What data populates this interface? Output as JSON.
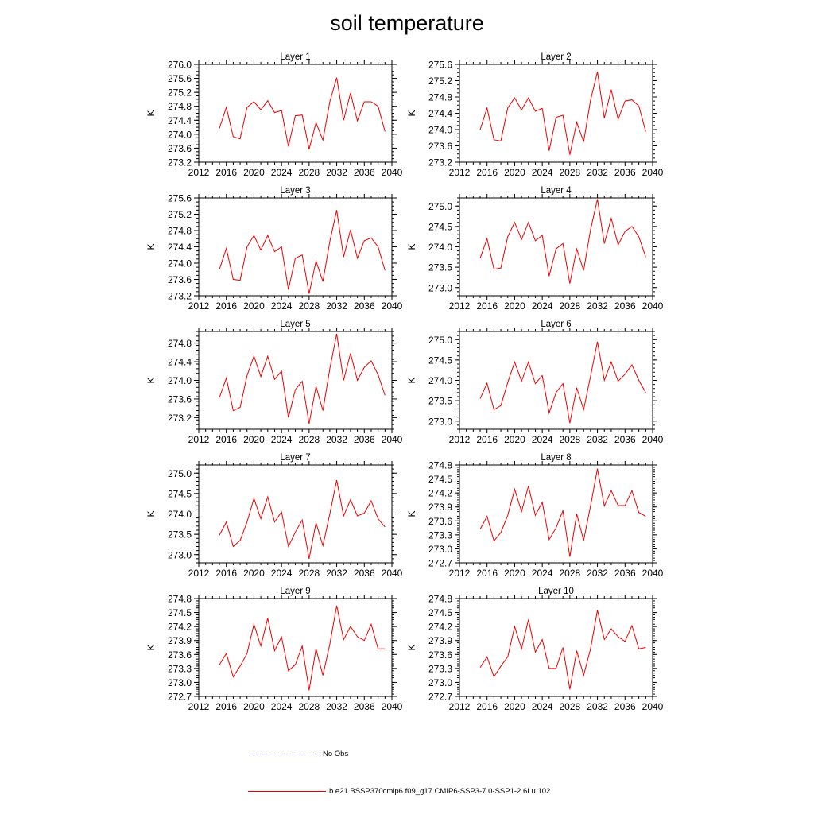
{
  "title": "soil temperature",
  "legend": {
    "obs_label": "No Obs",
    "obs_color": "#6060c8",
    "model_label": "b.e21.BSSP370cmip6.f09_g17.CMIP6-SSP3-7.0-SSP1-2.6Lu.102",
    "model_color": "#ee0000"
  },
  "chart_data": [
    {
      "type": "line",
      "title": "Layer 1",
      "ylabel": "K",
      "xlim": [
        2012,
        2040
      ],
      "xticks": [
        2012,
        2016,
        2020,
        2024,
        2028,
        2032,
        2036,
        2040
      ],
      "ylim": [
        273.2,
        276.0
      ],
      "yticks": [
        273.2,
        273.6,
        274.0,
        274.4,
        274.8,
        275.2,
        275.6,
        276.0
      ],
      "yminor": 0.1,
      "grid": false,
      "series": [
        {
          "color": "#ee0000",
          "x": [
            2015,
            2016,
            2017,
            2018,
            2019,
            2020,
            2021,
            2022,
            2023,
            2024,
            2025,
            2026,
            2027,
            2028,
            2029,
            2030,
            2031,
            2032,
            2033,
            2034,
            2035,
            2036,
            2037,
            2038,
            2039
          ],
          "values": [
            274.17,
            274.77,
            273.93,
            273.87,
            274.77,
            274.93,
            274.7,
            274.96,
            274.62,
            274.68,
            273.65,
            274.53,
            274.55,
            273.57,
            274.33,
            273.83,
            274.93,
            275.62,
            274.4,
            275.18,
            274.38,
            274.93,
            274.93,
            274.8,
            274.08
          ]
        }
      ]
    },
    {
      "type": "line",
      "title": "Layer 2",
      "ylabel": "K",
      "xlim": [
        2012,
        2040
      ],
      "xticks": [
        2012,
        2016,
        2020,
        2024,
        2028,
        2032,
        2036,
        2040
      ],
      "ylim": [
        273.2,
        275.6
      ],
      "yticks": [
        273.2,
        273.6,
        274.0,
        274.4,
        274.8,
        275.2,
        275.6
      ],
      "yminor": 0.1,
      "grid": false,
      "series": [
        {
          "color": "#ee0000",
          "x": [
            2015,
            2016,
            2017,
            2018,
            2019,
            2020,
            2021,
            2022,
            2023,
            2024,
            2025,
            2026,
            2027,
            2028,
            2029,
            2030,
            2031,
            2032,
            2033,
            2034,
            2035,
            2036,
            2037,
            2038,
            2039
          ],
          "values": [
            274.0,
            274.53,
            273.75,
            273.72,
            274.53,
            274.78,
            274.48,
            274.78,
            274.45,
            274.52,
            273.48,
            274.3,
            274.35,
            273.38,
            274.18,
            273.7,
            274.72,
            275.42,
            274.28,
            274.98,
            274.25,
            274.7,
            274.73,
            274.58,
            273.95
          ]
        }
      ]
    },
    {
      "type": "line",
      "title": "Layer 3",
      "ylabel": "K",
      "xlim": [
        2012,
        2040
      ],
      "xticks": [
        2012,
        2016,
        2020,
        2024,
        2028,
        2032,
        2036,
        2040
      ],
      "ylim": [
        273.2,
        275.6
      ],
      "yticks": [
        273.2,
        273.6,
        274.0,
        274.4,
        274.8,
        275.2,
        275.6
      ],
      "yminor": 0.1,
      "grid": false,
      "series": [
        {
          "color": "#ee0000",
          "x": [
            2015,
            2016,
            2017,
            2018,
            2019,
            2020,
            2021,
            2022,
            2023,
            2024,
            2025,
            2026,
            2027,
            2028,
            2029,
            2030,
            2031,
            2032,
            2033,
            2034,
            2035,
            2036,
            2037,
            2038,
            2039
          ],
          "values": [
            273.85,
            274.36,
            273.6,
            273.58,
            274.4,
            274.68,
            274.32,
            274.68,
            274.28,
            274.4,
            273.35,
            274.12,
            274.2,
            273.25,
            274.05,
            273.55,
            274.53,
            275.3,
            274.15,
            274.82,
            274.12,
            274.55,
            274.62,
            274.4,
            273.82
          ]
        }
      ]
    },
    {
      "type": "line",
      "title": "Layer 4",
      "ylabel": "K",
      "xlim": [
        2012,
        2040
      ],
      "xticks": [
        2012,
        2016,
        2020,
        2024,
        2028,
        2032,
        2036,
        2040
      ],
      "ylim": [
        272.8,
        275.2
      ],
      "yticks": [
        273.0,
        273.5,
        274.0,
        274.5,
        275.0
      ],
      "yminor": 0.1,
      "grid": false,
      "series": [
        {
          "color": "#ee0000",
          "x": [
            2015,
            2016,
            2017,
            2018,
            2019,
            2020,
            2021,
            2022,
            2023,
            2024,
            2025,
            2026,
            2027,
            2028,
            2029,
            2030,
            2031,
            2032,
            2033,
            2034,
            2035,
            2036,
            2037,
            2038,
            2039
          ],
          "values": [
            273.72,
            274.2,
            273.45,
            273.48,
            274.25,
            274.6,
            274.18,
            274.6,
            274.15,
            274.28,
            273.28,
            273.95,
            274.08,
            273.1,
            273.95,
            273.42,
            274.42,
            275.17,
            274.08,
            274.7,
            274.05,
            274.38,
            274.5,
            274.25,
            273.75
          ]
        }
      ]
    },
    {
      "type": "line",
      "title": "Layer 5",
      "ylabel": "K",
      "xlim": [
        2012,
        2040
      ],
      "xticks": [
        2012,
        2016,
        2020,
        2024,
        2028,
        2032,
        2036,
        2040
      ],
      "ylim": [
        272.95,
        275.05
      ],
      "yticks": [
        273.2,
        273.6,
        274.0,
        274.4,
        274.8
      ],
      "yminor": 0.1,
      "grid": false,
      "series": [
        {
          "color": "#ee0000",
          "x": [
            2015,
            2016,
            2017,
            2018,
            2019,
            2020,
            2021,
            2022,
            2023,
            2024,
            2025,
            2026,
            2027,
            2028,
            2029,
            2030,
            2031,
            2032,
            2033,
            2034,
            2035,
            2036,
            2037,
            2038,
            2039
          ],
          "values": [
            273.63,
            274.05,
            273.35,
            273.42,
            274.1,
            274.52,
            274.08,
            274.52,
            274.02,
            274.2,
            273.2,
            273.8,
            273.98,
            273.07,
            273.87,
            273.35,
            274.25,
            275.0,
            274.0,
            274.58,
            274.0,
            274.28,
            274.42,
            274.12,
            273.68
          ]
        }
      ]
    },
    {
      "type": "line",
      "title": "Layer 6",
      "ylabel": "K",
      "xlim": [
        2012,
        2040
      ],
      "xticks": [
        2012,
        2016,
        2020,
        2024,
        2028,
        2032,
        2036,
        2040
      ],
      "ylim": [
        272.8,
        275.2
      ],
      "yticks": [
        273.0,
        273.5,
        274.0,
        274.5,
        275.0
      ],
      "yminor": 0.1,
      "grid": false,
      "series": [
        {
          "color": "#ee0000",
          "x": [
            2015,
            2016,
            2017,
            2018,
            2019,
            2020,
            2021,
            2022,
            2023,
            2024,
            2025,
            2026,
            2027,
            2028,
            2029,
            2030,
            2031,
            2032,
            2033,
            2034,
            2035,
            2036,
            2037,
            2038,
            2039
          ],
          "values": [
            273.55,
            273.93,
            273.28,
            273.38,
            273.95,
            274.45,
            273.98,
            274.45,
            273.92,
            274.12,
            273.2,
            273.7,
            273.92,
            272.95,
            273.82,
            273.28,
            274.1,
            274.95,
            274.0,
            274.45,
            273.98,
            274.15,
            274.38,
            274.0,
            273.7
          ]
        }
      ]
    },
    {
      "type": "line",
      "title": "Layer 7",
      "ylabel": "K",
      "xlim": [
        2012,
        2040
      ],
      "xticks": [
        2012,
        2016,
        2020,
        2024,
        2028,
        2032,
        2036,
        2040
      ],
      "ylim": [
        272.8,
        275.2
      ],
      "yticks": [
        273.0,
        273.5,
        274.0,
        274.5,
        275.0
      ],
      "yminor": 0.1,
      "grid": false,
      "series": [
        {
          "color": "#ee0000",
          "x": [
            2015,
            2016,
            2017,
            2018,
            2019,
            2020,
            2021,
            2022,
            2023,
            2024,
            2025,
            2026,
            2027,
            2028,
            2029,
            2030,
            2031,
            2032,
            2033,
            2034,
            2035,
            2036,
            2037,
            2038,
            2039
          ],
          "values": [
            273.48,
            273.8,
            273.2,
            273.35,
            273.8,
            274.38,
            273.88,
            274.42,
            273.8,
            274.05,
            273.2,
            273.55,
            273.85,
            272.9,
            273.78,
            273.22,
            274.0,
            274.83,
            273.95,
            274.35,
            273.95,
            274.02,
            274.32,
            273.88,
            273.68
          ]
        }
      ]
    },
    {
      "type": "line",
      "title": "Layer 8",
      "ylabel": "K",
      "xlim": [
        2012,
        2040
      ],
      "xticks": [
        2012,
        2016,
        2020,
        2024,
        2028,
        2032,
        2036,
        2040
      ],
      "ylim": [
        272.7,
        274.8
      ],
      "yticks": [
        272.7,
        273.0,
        273.3,
        273.6,
        273.9,
        274.2,
        274.5,
        274.8
      ],
      "yminor": 0.05,
      "grid": false,
      "series": [
        {
          "color": "#ee0000",
          "x": [
            2015,
            2016,
            2017,
            2018,
            2019,
            2020,
            2021,
            2022,
            2023,
            2024,
            2025,
            2026,
            2027,
            2028,
            2029,
            2030,
            2031,
            2032,
            2033,
            2034,
            2035,
            2036,
            2037,
            2038,
            2039
          ],
          "values": [
            273.42,
            273.7,
            273.17,
            273.35,
            273.72,
            274.28,
            273.8,
            274.35,
            273.72,
            274.0,
            273.2,
            273.45,
            273.82,
            272.83,
            273.75,
            273.18,
            273.92,
            274.72,
            273.92,
            274.25,
            273.93,
            273.93,
            274.25,
            273.78,
            273.7
          ]
        }
      ]
    },
    {
      "type": "line",
      "title": "Layer 9",
      "ylabel": "K",
      "xlim": [
        2012,
        2040
      ],
      "xticks": [
        2012,
        2016,
        2020,
        2024,
        2028,
        2032,
        2036,
        2040
      ],
      "ylim": [
        272.7,
        274.8
      ],
      "yticks": [
        272.7,
        273.0,
        273.3,
        273.6,
        273.9,
        274.2,
        274.5,
        274.8
      ],
      "yminor": 0.05,
      "grid": false,
      "series": [
        {
          "color": "#ee0000",
          "x": [
            2015,
            2016,
            2017,
            2018,
            2019,
            2020,
            2021,
            2022,
            2023,
            2024,
            2025,
            2026,
            2027,
            2028,
            2029,
            2030,
            2031,
            2032,
            2033,
            2034,
            2035,
            2036,
            2037,
            2038,
            2039
          ],
          "values": [
            273.38,
            273.62,
            273.12,
            273.35,
            273.62,
            274.25,
            273.78,
            274.38,
            273.68,
            273.98,
            273.25,
            273.38,
            273.78,
            272.83,
            273.72,
            273.15,
            273.82,
            274.65,
            273.92,
            274.2,
            273.98,
            273.9,
            274.25,
            273.72,
            273.72
          ]
        }
      ]
    },
    {
      "type": "line",
      "title": "Layer 10",
      "ylabel": "K",
      "xlim": [
        2012,
        2040
      ],
      "xticks": [
        2012,
        2016,
        2020,
        2024,
        2028,
        2032,
        2036,
        2040
      ],
      "ylim": [
        272.7,
        274.8
      ],
      "yticks": [
        272.7,
        273.0,
        273.3,
        273.6,
        273.9,
        274.2,
        274.5,
        274.8
      ],
      "yminor": 0.05,
      "grid": false,
      "series": [
        {
          "color": "#ee0000",
          "x": [
            2015,
            2016,
            2017,
            2018,
            2019,
            2020,
            2021,
            2022,
            2023,
            2024,
            2025,
            2026,
            2027,
            2028,
            2029,
            2030,
            2031,
            2032,
            2033,
            2034,
            2035,
            2036,
            2037,
            2038,
            2039
          ],
          "values": [
            273.32,
            273.55,
            273.12,
            273.35,
            273.55,
            274.2,
            273.72,
            274.35,
            273.65,
            273.92,
            273.3,
            273.3,
            273.75,
            272.85,
            273.68,
            273.15,
            273.72,
            274.55,
            273.92,
            274.15,
            273.98,
            273.88,
            274.22,
            273.72,
            273.75
          ]
        }
      ]
    }
  ]
}
